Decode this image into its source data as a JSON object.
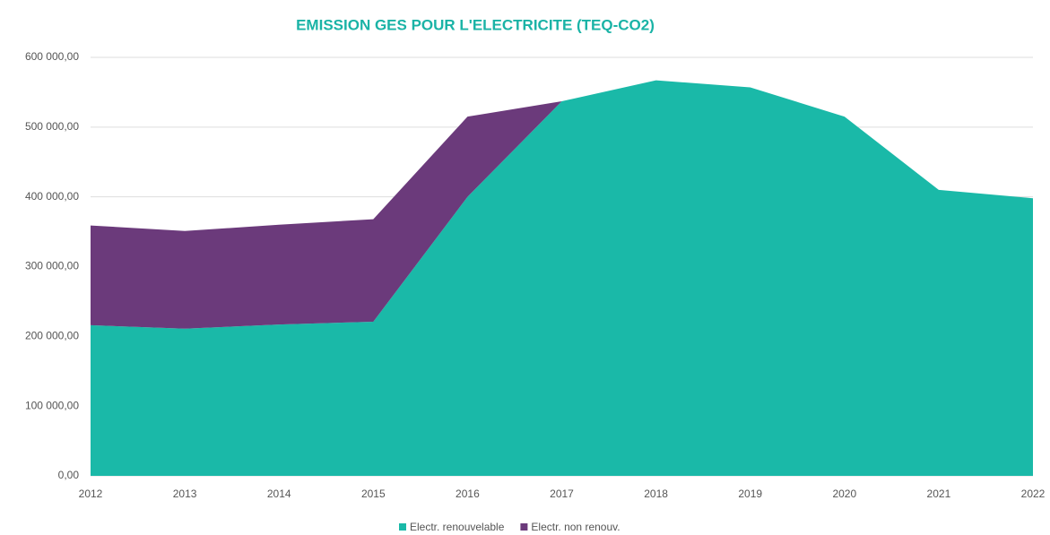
{
  "chart_data": {
    "type": "stacked_area",
    "title": "EMISSION GES POUR L'ELECTRICITE (TEQ-CO2)",
    "x": [
      2012,
      2013,
      2014,
      2015,
      2016,
      2017,
      2018,
      2019,
      2020,
      2021,
      2022
    ],
    "xlim": [
      2012,
      2022
    ],
    "xticks": [
      2012,
      2013,
      2014,
      2015,
      2016,
      2017,
      2018,
      2019,
      2020,
      2021,
      2022
    ],
    "series": [
      {
        "name": "Electr. renouvelable",
        "color": "#1ab9a8",
        "values": [
          216000,
          211000,
          217000,
          221000,
          400000,
          537000,
          567000,
          557000,
          515000,
          410000,
          398000
        ]
      },
      {
        "name": "Electr. non renouv.",
        "color": "#6b3a7b",
        "values": [
          143000,
          140000,
          143000,
          147000,
          115000,
          0,
          0,
          0,
          0,
          0,
          0
        ]
      }
    ],
    "ylim": [
      0,
      600000
    ],
    "yticks": [
      {
        "value": 0,
        "label": "0,00"
      },
      {
        "value": 100000,
        "label": "100 000,00"
      },
      {
        "value": 200000,
        "label": "200 000,00"
      },
      {
        "value": 300000,
        "label": "300 000,00"
      },
      {
        "value": 400000,
        "label": "400 000,00"
      },
      {
        "value": 500000,
        "label": "500 000,00"
      },
      {
        "value": 600000,
        "label": "600 000,00"
      }
    ],
    "grid": true,
    "legend": "bottom"
  }
}
